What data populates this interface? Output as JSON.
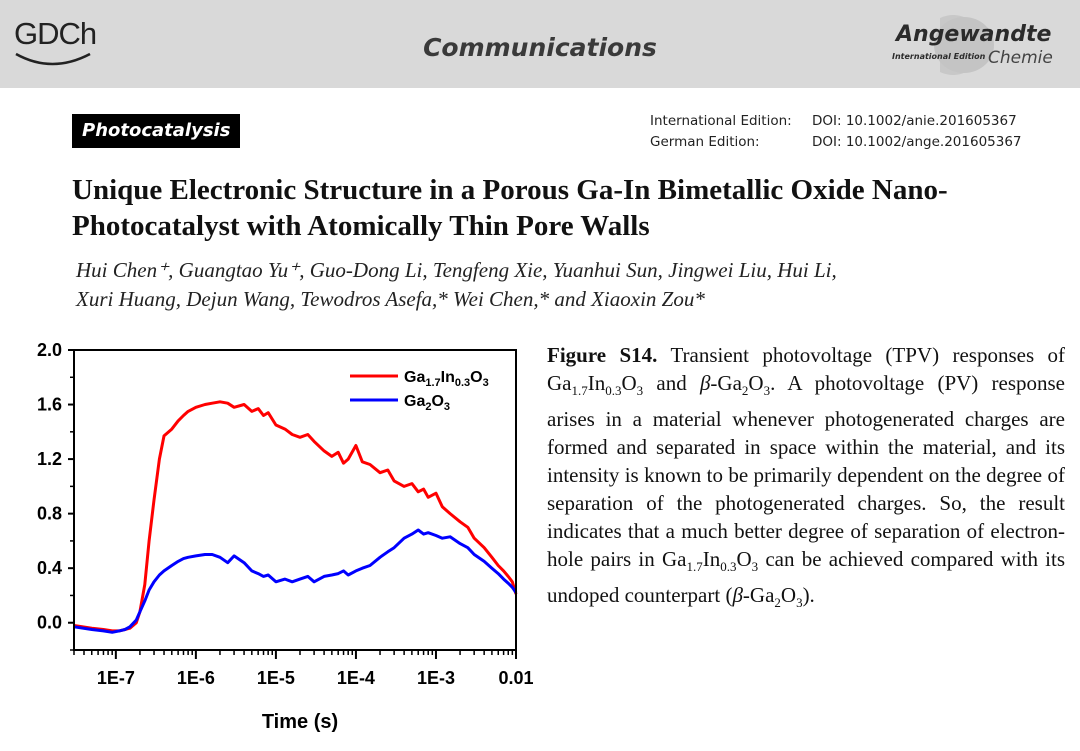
{
  "header": {
    "society_logo": "GDCh",
    "section": "Communications",
    "journal_logo": {
      "main": "Angewandte",
      "sub": "International Edition",
      "chemie": "Chemie"
    }
  },
  "badge": "Photocatalysis",
  "doi": {
    "international_label": "International Edition:",
    "international_value": "DOI: 10.1002/anie.201605367",
    "german_label": "German Edition:",
    "german_value": "DOI: 10.1002/ange.201605367"
  },
  "title": "Unique Electronic Structure in a Porous Ga-In Bimetallic Oxide Nano-Photocatalyst with Atomically Thin Pore Walls",
  "authors_line1": "Hui Chen⁺, Guangtao Yu⁺, Guo-Dong Li, Tengfeng Xie, Yuanhui Sun, Jingwei Liu, Hui Li,",
  "authors_line2": "Xuri Huang, Dejun Wang, Tewodros Asefa,* Wei Chen,* and Xiaoxin Zou*",
  "caption": {
    "label": "Figure S14.",
    "text": "Transient photovoltage (TPV) responses of Ga1.7In0.3O3 and β-Ga2O3. A photovoltage (PV) response arises in a material whenever photogenerated charges are formed and separated in space within the material, and its intensity is known to be primarily dependent on the degree of separation of the photogenerated charges. So, the result indicates that a much better degree of separation of electron-hole pairs in Ga1.7In0.3O3 can be achieved compared with its undoped counterpart (β-Ga2O3)."
  },
  "colors": {
    "series1": "#ff0000",
    "series2": "#0000ff",
    "header_band": "#d9d9d9"
  },
  "chart_data": {
    "type": "line",
    "xlabel": "Time (s)",
    "ylabel": "",
    "x_scale": "log",
    "xlim": [
      3e-08,
      0.01
    ],
    "ylim": [
      -0.2,
      2.0
    ],
    "x_ticks": [
      1e-07,
      1e-06,
      1e-05,
      0.0001,
      0.001,
      0.01
    ],
    "x_tick_labels": [
      "1E-7",
      "1E-6",
      "1E-5",
      "1E-4",
      "1E-3",
      "0.01"
    ],
    "y_ticks": [
      0.0,
      0.4,
      0.8,
      1.2,
      1.6,
      2.0
    ],
    "y_tick_labels": [
      "0.0",
      "0.4",
      "0.8",
      "1.2",
      "1.6",
      "2.0"
    ],
    "legend_position": "top-right",
    "series": [
      {
        "name": "Ga1.7In0.3O3",
        "color": "#ff0000",
        "x": [
          3e-08,
          5e-08,
          7e-08,
          9e-08,
          1.1e-07,
          1.3e-07,
          1.5e-07,
          1.8e-07,
          2e-07,
          2.3e-07,
          2.6e-07,
          3e-07,
          3.5e-07,
          4e-07,
          5e-07,
          6e-07,
          7e-07,
          8e-07,
          1e-06,
          1.3e-06,
          1.6e-06,
          2e-06,
          2.5e-06,
          3e-06,
          4e-06,
          5e-06,
          6e-06,
          7e-06,
          8e-06,
          1e-05,
          1.3e-05,
          1.6e-05,
          2e-05,
          2.5e-05,
          3e-05,
          4e-05,
          5e-05,
          6e-05,
          7e-05,
          8e-05,
          0.0001,
          0.00012,
          0.00015,
          0.0002,
          0.00025,
          0.0003,
          0.0004,
          0.0005,
          0.0006,
          0.0007,
          0.0008,
          0.001,
          0.0012,
          0.0015,
          0.002,
          0.0025,
          0.003,
          0.004,
          0.005,
          0.006,
          0.007,
          0.008,
          0.009,
          0.01
        ],
        "values": [
          -0.02,
          -0.04,
          -0.05,
          -0.06,
          -0.06,
          -0.05,
          -0.04,
          0.0,
          0.08,
          0.28,
          0.6,
          0.9,
          1.2,
          1.37,
          1.42,
          1.48,
          1.52,
          1.55,
          1.58,
          1.6,
          1.61,
          1.62,
          1.61,
          1.58,
          1.6,
          1.55,
          1.57,
          1.52,
          1.54,
          1.45,
          1.42,
          1.38,
          1.36,
          1.38,
          1.33,
          1.26,
          1.22,
          1.25,
          1.17,
          1.2,
          1.3,
          1.18,
          1.16,
          1.1,
          1.12,
          1.04,
          1.0,
          1.02,
          0.96,
          0.98,
          0.92,
          0.95,
          0.85,
          0.8,
          0.74,
          0.7,
          0.62,
          0.55,
          0.48,
          0.42,
          0.38,
          0.34,
          0.3,
          0.21
        ]
      },
      {
        "name": "Ga2O3",
        "color": "#0000ff",
        "x": [
          3e-08,
          5e-08,
          7e-08,
          9e-08,
          1.1e-07,
          1.3e-07,
          1.5e-07,
          1.8e-07,
          2e-07,
          2.3e-07,
          2.6e-07,
          3e-07,
          3.5e-07,
          4e-07,
          5e-07,
          6e-07,
          7e-07,
          8e-07,
          1e-06,
          1.3e-06,
          1.6e-06,
          2e-06,
          2.5e-06,
          3e-06,
          4e-06,
          5e-06,
          6e-06,
          7e-06,
          8e-06,
          1e-05,
          1.3e-05,
          1.6e-05,
          2e-05,
          2.5e-05,
          3e-05,
          4e-05,
          5e-05,
          6e-05,
          7e-05,
          8e-05,
          0.0001,
          0.00012,
          0.00015,
          0.0002,
          0.00025,
          0.0003,
          0.0004,
          0.0005,
          0.0006,
          0.0007,
          0.0008,
          0.001,
          0.0012,
          0.0015,
          0.002,
          0.0025,
          0.003,
          0.004,
          0.005,
          0.006,
          0.007,
          0.008,
          0.009,
          0.01
        ],
        "values": [
          -0.03,
          -0.05,
          -0.06,
          -0.07,
          -0.06,
          -0.05,
          -0.03,
          0.02,
          0.08,
          0.16,
          0.24,
          0.3,
          0.35,
          0.38,
          0.42,
          0.45,
          0.47,
          0.48,
          0.49,
          0.5,
          0.5,
          0.48,
          0.44,
          0.49,
          0.44,
          0.38,
          0.36,
          0.34,
          0.35,
          0.3,
          0.32,
          0.3,
          0.32,
          0.34,
          0.3,
          0.34,
          0.35,
          0.36,
          0.38,
          0.35,
          0.38,
          0.4,
          0.42,
          0.48,
          0.52,
          0.55,
          0.62,
          0.65,
          0.68,
          0.65,
          0.66,
          0.64,
          0.62,
          0.63,
          0.58,
          0.55,
          0.5,
          0.45,
          0.4,
          0.36,
          0.32,
          0.29,
          0.26,
          0.22
        ]
      }
    ]
  }
}
